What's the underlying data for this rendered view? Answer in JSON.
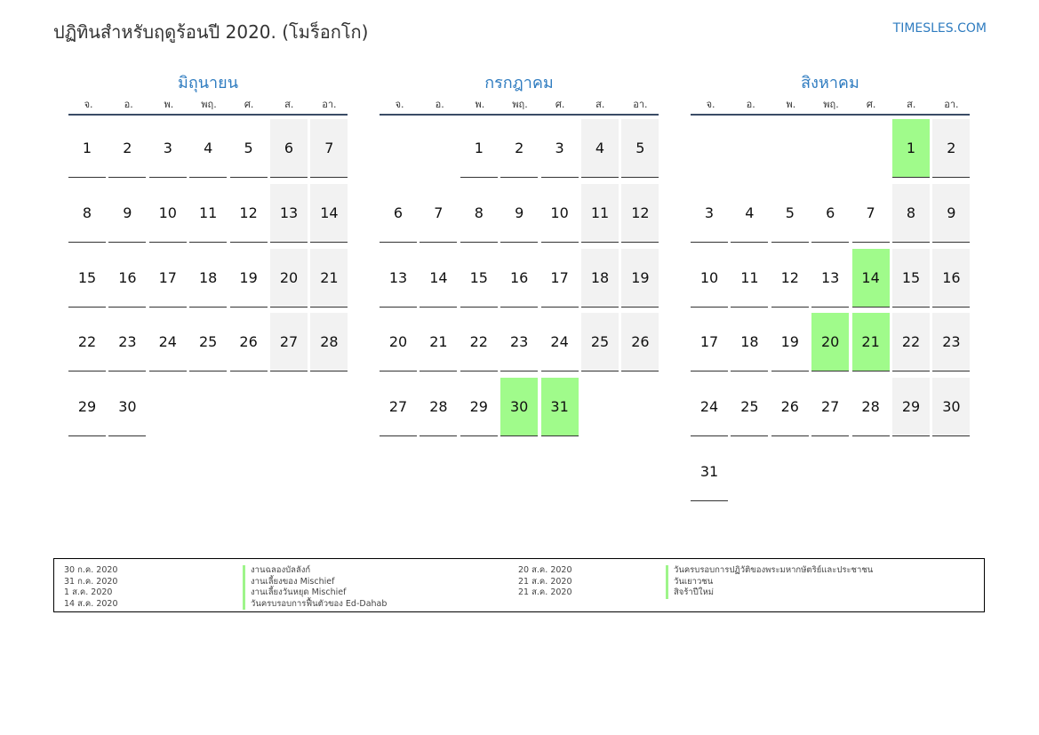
{
  "header": {
    "title": "ปฏิทินสำหรับฤดูร้อนปี 2020. (โมร็อกโก)",
    "site": "TIMESLES.COM"
  },
  "weekdays": [
    "จ.",
    "อ.",
    "พ.",
    "พฤ.",
    "ศ.",
    "ส.",
    "อา."
  ],
  "months": [
    {
      "name": "มิถุนายน",
      "start_offset": 0,
      "days": 30,
      "holidays": []
    },
    {
      "name": "กรกฎาคม",
      "start_offset": 2,
      "days": 31,
      "holidays": [
        30,
        31
      ]
    },
    {
      "name": "สิงหาคม",
      "start_offset": 5,
      "days": 31,
      "holidays": [
        1,
        14,
        20,
        21
      ]
    }
  ],
  "legend": {
    "left": [
      {
        "date": "30 ก.ค. 2020",
        "name": "งานฉลองบัลลังก์"
      },
      {
        "date": "31 ก.ค. 2020",
        "name": "งานเลี้ยงของ Mischief"
      },
      {
        "date": "1 ส.ค. 2020",
        "name": "งานเลี้ยงวันหยุด Mischief"
      },
      {
        "date": "14 ส.ค. 2020",
        "name": "วันครบรอบการฟื้นตัวของ Ed-Dahab"
      }
    ],
    "right": [
      {
        "date": "20 ส.ค. 2020",
        "name": "วันครบรอบการปฏิวัติของพระมหากษัตริย์และประชาชน"
      },
      {
        "date": "21 ส.ค. 2020",
        "name": "วันเยาวชน"
      },
      {
        "date": "21 ส.ค. 2020",
        "name": "สิจร้าปีใหม่"
      }
    ]
  }
}
